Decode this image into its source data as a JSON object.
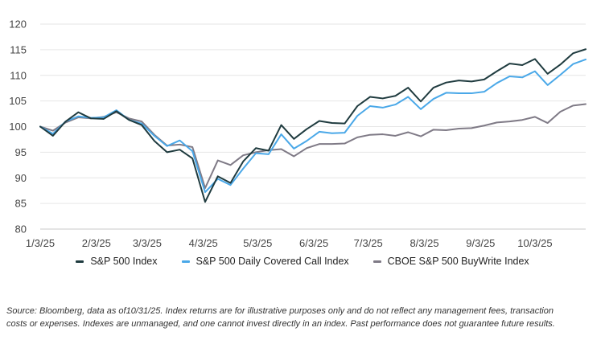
{
  "chart_data": {
    "type": "line",
    "title": "",
    "xlabel": "",
    "ylabel": "",
    "ylim": [
      80,
      120
    ],
    "yticks": [
      80,
      85,
      90,
      95,
      100,
      105,
      110,
      115,
      120
    ],
    "grid": "horizontal",
    "legend_position": "bottom",
    "x": [
      "2025-01-03",
      "2025-01-10",
      "2025-01-17",
      "2025-01-24",
      "2025-01-31",
      "2025-02-07",
      "2025-02-14",
      "2025-02-21",
      "2025-02-28",
      "2025-03-07",
      "2025-03-14",
      "2025-03-21",
      "2025-03-28",
      "2025-04-04",
      "2025-04-11",
      "2025-04-18",
      "2025-04-25",
      "2025-05-02",
      "2025-05-09",
      "2025-05-16",
      "2025-05-23",
      "2025-05-30",
      "2025-06-06",
      "2025-06-13",
      "2025-06-20",
      "2025-06-27",
      "2025-07-04",
      "2025-07-11",
      "2025-07-18",
      "2025-07-25",
      "2025-08-01",
      "2025-08-08",
      "2025-08-15",
      "2025-08-22",
      "2025-08-29",
      "2025-09-05",
      "2025-09-12",
      "2025-09-19",
      "2025-09-26",
      "2025-10-03",
      "2025-10-10",
      "2025-10-17",
      "2025-10-24",
      "2025-10-31"
    ],
    "xtick_labels": [
      "1/3/25",
      "2/3/25",
      "3/3/25",
      "4/3/25",
      "5/3/25",
      "6/3/25",
      "7/3/25",
      "8/3/25",
      "9/3/25",
      "10/3/25"
    ],
    "xtick_dates": [
      "2025-01-03",
      "2025-02-03",
      "2025-03-03",
      "2025-04-03",
      "2025-05-03",
      "2025-06-03",
      "2025-07-03",
      "2025-08-03",
      "2025-09-03",
      "2025-10-03"
    ],
    "series": [
      {
        "name": "S&P 500 Index",
        "color": "#1f3b3f",
        "values": [
          100,
          98.2,
          101.0,
          102.8,
          101.6,
          101.5,
          103.0,
          101.3,
          100.3,
          97.2,
          95.0,
          95.5,
          93.8,
          85.3,
          90.3,
          89.0,
          93.2,
          95.8,
          95.3,
          100.3,
          97.6,
          99.5,
          101.1,
          100.7,
          100.6,
          104.0,
          105.8,
          105.5,
          106.0,
          107.6,
          104.9,
          107.6,
          108.6,
          109.0,
          108.8,
          109.2,
          110.8,
          112.3,
          112.0,
          113.2,
          110.3,
          112.1,
          114.3,
          115.1
        ]
      },
      {
        "name": "S&P 500 Daily Covered Call Index",
        "color": "#4aa8e8",
        "values": [
          100,
          98.6,
          101.0,
          102.0,
          101.7,
          101.8,
          103.2,
          101.3,
          100.6,
          98.2,
          96.2,
          97.3,
          95.2,
          87.2,
          89.8,
          88.6,
          91.8,
          94.8,
          94.6,
          98.5,
          95.7,
          97.2,
          99.0,
          98.7,
          98.8,
          102.1,
          104.0,
          103.7,
          104.3,
          105.8,
          103.4,
          105.4,
          106.6,
          106.5,
          106.5,
          106.8,
          108.5,
          109.8,
          109.6,
          110.8,
          108.1,
          110.1,
          112.2,
          113.1
        ]
      },
      {
        "name": "CBOE S&P 500 BuyWrite Index",
        "color": "#7f7a86",
        "values": [
          100,
          99.2,
          100.8,
          101.8,
          101.6,
          101.9,
          102.8,
          101.6,
          101.0,
          98.4,
          96.3,
          96.5,
          96.0,
          88.0,
          93.4,
          92.5,
          94.4,
          95.0,
          95.4,
          95.6,
          94.2,
          95.8,
          96.6,
          96.6,
          96.7,
          97.9,
          98.4,
          98.5,
          98.2,
          98.9,
          98.1,
          99.4,
          99.3,
          99.6,
          99.7,
          100.2,
          100.8,
          101.0,
          101.3,
          101.9,
          100.7,
          102.9,
          104.1,
          104.4
        ]
      }
    ]
  },
  "footnote": {
    "line1": "Source: Bloomberg, data as of10/31/25. Index returns are for illustrative purposes only and do not reflect any management fees, transaction",
    "line2": "costs or expenses. Indexes are unmanaged, and one cannot invest directly in an index. Past performance does not guarantee future results."
  }
}
